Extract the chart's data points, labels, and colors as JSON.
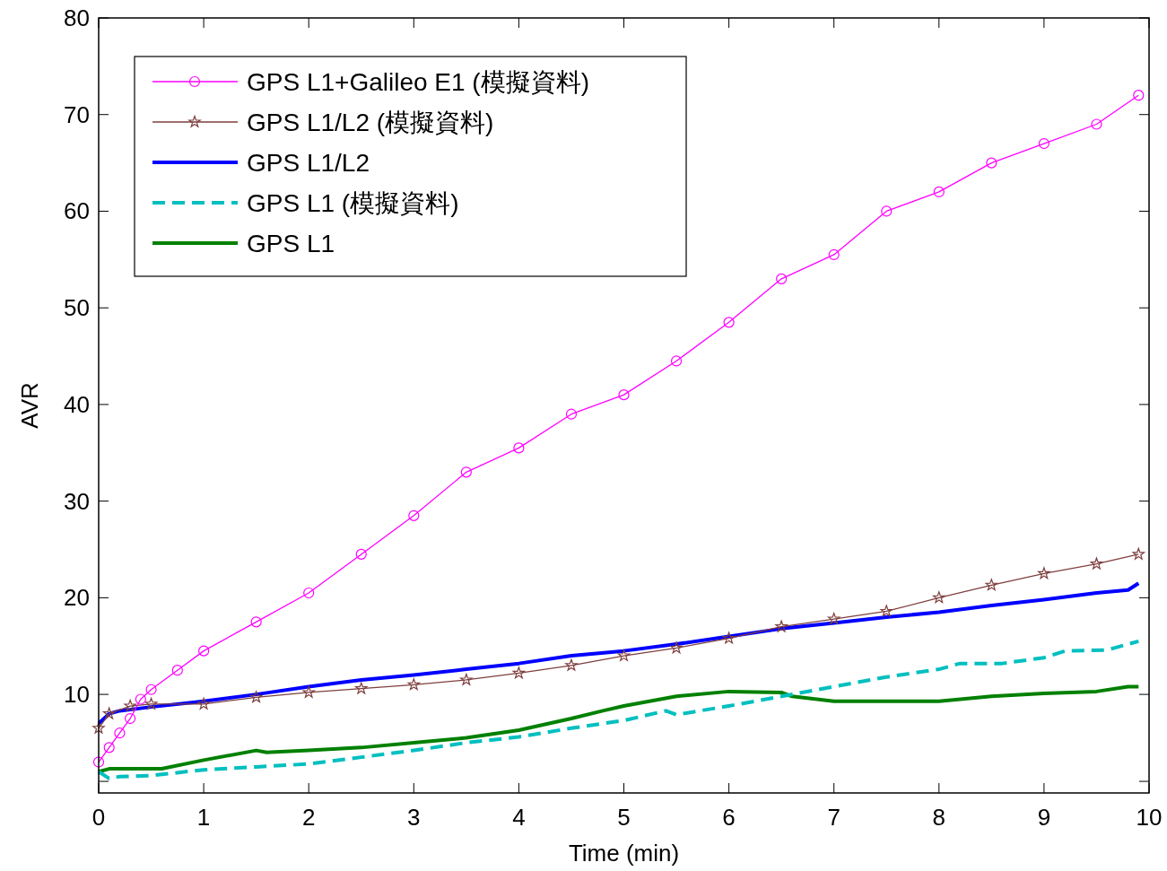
{
  "chart_data": {
    "type": "line",
    "xlabel": "Time (min)",
    "ylabel": "AVR",
    "xlim": [
      0,
      10
    ],
    "ylim": [
      -0.2,
      80
    ],
    "xticks": [
      0,
      1,
      2,
      3,
      4,
      5,
      6,
      7,
      8,
      9,
      10
    ],
    "yticks": [
      {
        "value": 1,
        "label": null
      },
      10,
      20,
      30,
      40,
      50,
      60,
      70,
      80
    ],
    "grid": false,
    "legend": "top left",
    "series": [
      {
        "name": "GPS L1+Galileo E1 (模擬資料)",
        "color": "#ff00ff",
        "marker": "circle",
        "line_style": "solid",
        "x": [
          0,
          0.1,
          0.2,
          0.3,
          0.4,
          0.5,
          0.75,
          1,
          1.5,
          2,
          2.5,
          3,
          3.5,
          4,
          4.5,
          5,
          5.5,
          6,
          6.5,
          7,
          7.5,
          8,
          8.5,
          9,
          9.5,
          9.9
        ],
        "values": [
          3,
          4.5,
          6,
          7.5,
          9.5,
          10.5,
          12.5,
          14.5,
          17.5,
          20.5,
          24.5,
          28.5,
          33,
          35.5,
          39,
          41,
          44.5,
          48.5,
          53,
          55.5,
          60,
          62,
          65,
          67,
          69,
          72
        ]
      },
      {
        "name": "GPS L1/L2 (模擬資料)",
        "color": "#7f3f3f",
        "marker": "star",
        "line_style": "solid",
        "x": [
          0,
          0.1,
          0.3,
          0.5,
          1,
          1.5,
          2,
          2.5,
          3,
          3.5,
          4,
          4.5,
          5,
          5.5,
          6,
          6.5,
          7,
          7.5,
          8,
          8.5,
          9,
          9.5,
          9.9
        ],
        "values": [
          6.5,
          8,
          8.8,
          9,
          9,
          9.7,
          10.2,
          10.6,
          11,
          11.5,
          12.2,
          13,
          14,
          14.8,
          15.8,
          17,
          17.8,
          18.6,
          20,
          21.3,
          22.5,
          23.5,
          24.5
        ]
      },
      {
        "name": "GPS L1/L2",
        "color": "#0000ff",
        "marker": "none",
        "line_style": "solid",
        "x": [
          0,
          0.1,
          0.2,
          0.5,
          1,
          1.5,
          2,
          2.5,
          3,
          3.5,
          4,
          4.5,
          5,
          5.5,
          6,
          6.5,
          7,
          7.5,
          8,
          8.5,
          9,
          9.5,
          9.8,
          9.9
        ],
        "values": [
          7,
          8,
          8.3,
          8.7,
          9.3,
          10,
          10.8,
          11.5,
          12,
          12.6,
          13.2,
          14,
          14.5,
          15.2,
          16,
          16.8,
          17.4,
          18,
          18.5,
          19.2,
          19.8,
          20.5,
          20.8,
          21.5
        ]
      },
      {
        "name": "GPS L1 (模擬資料)",
        "color": "#00bfbf",
        "marker": "none",
        "line_style": "dashed",
        "x": [
          0,
          0.1,
          0.2,
          0.5,
          1,
          1.5,
          2,
          2.5,
          3,
          3.5,
          4,
          4.5,
          5,
          5.4,
          5.5,
          6,
          6.5,
          7,
          7.5,
          8,
          8.2,
          8.6,
          9,
          9.2,
          9.6,
          9.9
        ],
        "values": [
          2,
          1.3,
          1.5,
          1.6,
          2.2,
          2.5,
          2.8,
          3.5,
          4.2,
          5,
          5.6,
          6.5,
          7.3,
          8.3,
          7.9,
          8.8,
          9.8,
          10.8,
          11.8,
          12.6,
          13.2,
          13.2,
          13.8,
          14.5,
          14.6,
          15.5
        ]
      },
      {
        "name": "GPS L1",
        "color": "#008000",
        "marker": "none",
        "line_style": "solid",
        "x": [
          0,
          0.1,
          0.6,
          1,
          1.5,
          1.6,
          2,
          2.5,
          3,
          3.5,
          4,
          4.5,
          4.8,
          5,
          5.5,
          6,
          6.5,
          6.6,
          7,
          8,
          8.5,
          9,
          9.5,
          9.8,
          9.9
        ],
        "values": [
          2,
          2.3,
          2.3,
          3.2,
          4.2,
          4,
          4.2,
          4.5,
          5,
          5.5,
          6.3,
          7.5,
          8.3,
          8.8,
          9.8,
          10.3,
          10.2,
          9.8,
          9.3,
          9.3,
          9.8,
          10.1,
          10.3,
          10.8,
          10.8
        ]
      }
    ]
  }
}
